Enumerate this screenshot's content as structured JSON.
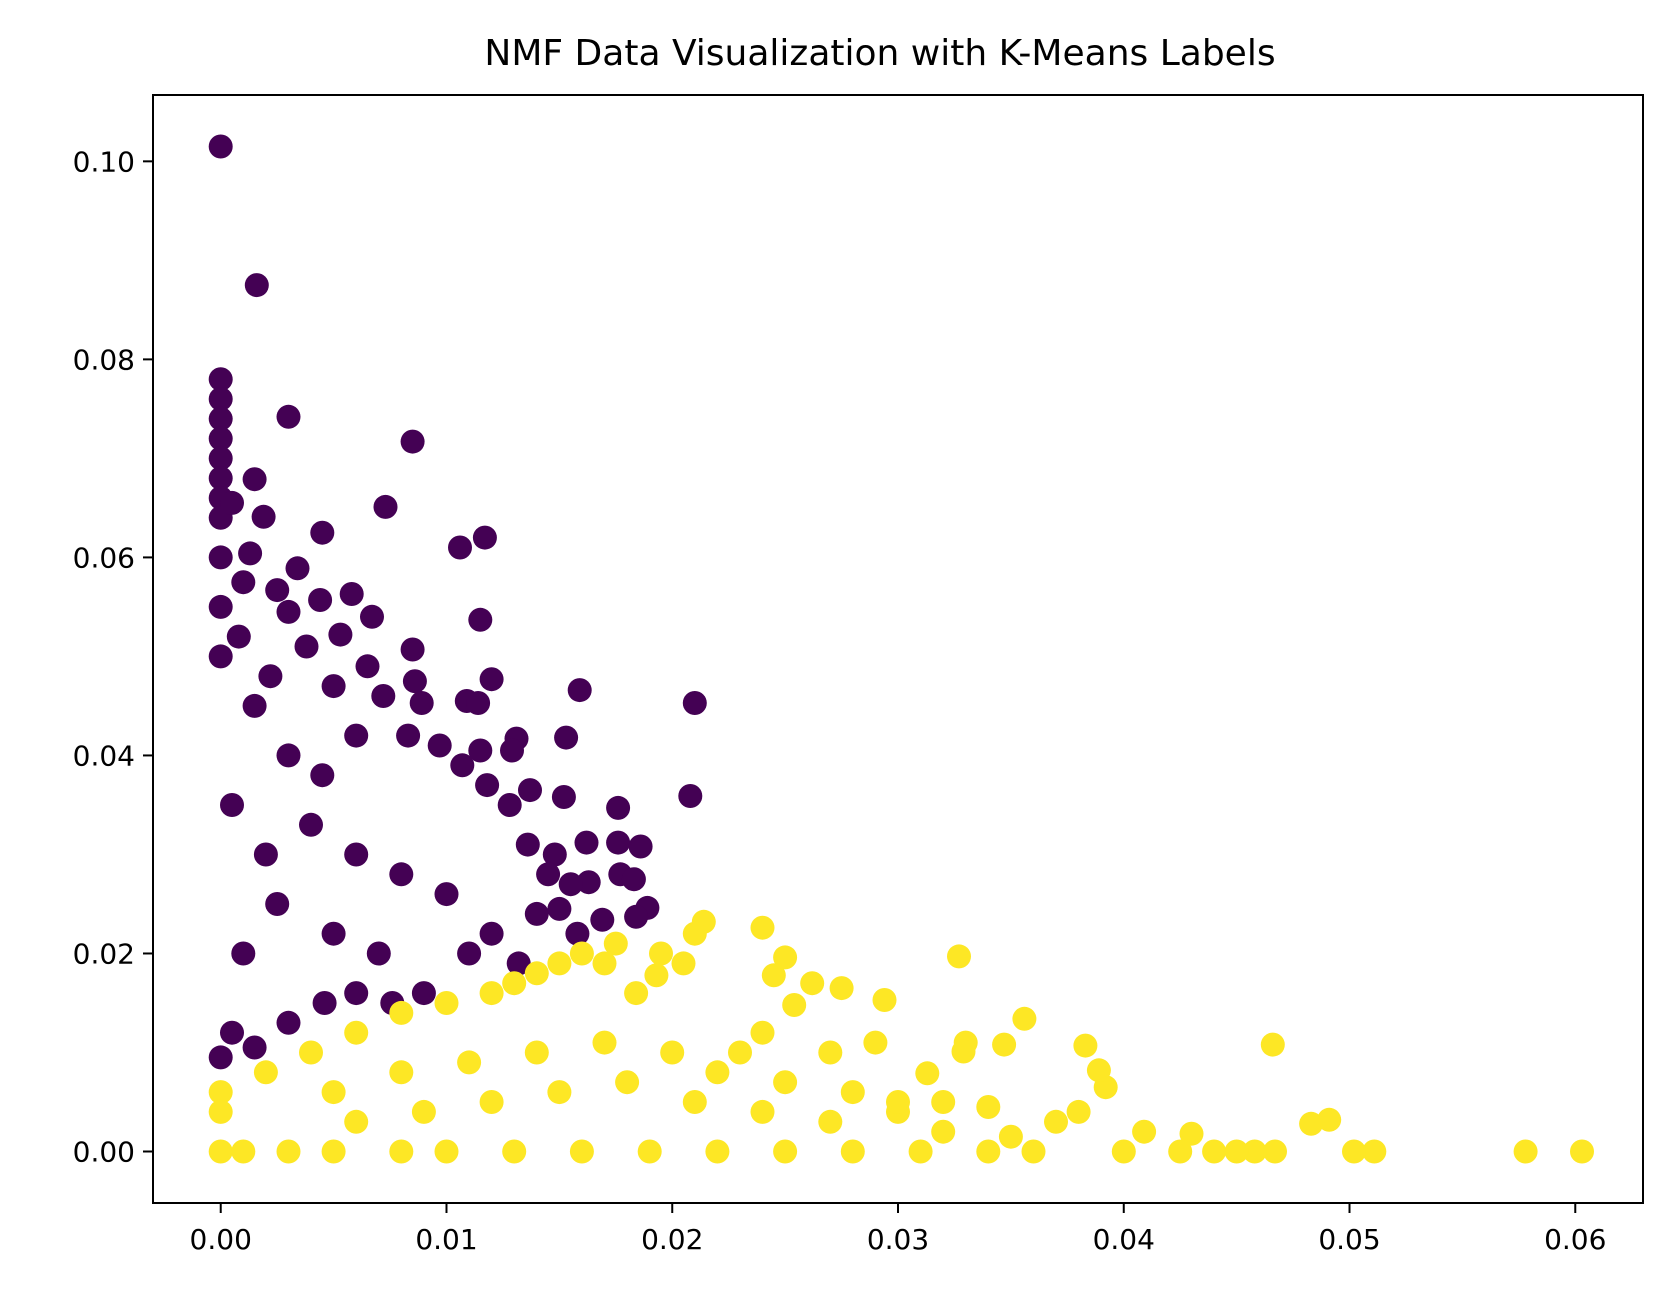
{
  "chart_data": {
    "type": "scatter",
    "title": "NMF Data Visualization with K-Means Labels",
    "xlabel": "",
    "ylabel": "",
    "xlim": [
      -0.003,
      0.063
    ],
    "ylim": [
      -0.0052,
      0.1067
    ],
    "xticks": [
      0.0,
      0.01,
      0.02,
      0.03,
      0.04,
      0.05,
      0.06
    ],
    "xtick_labels": [
      "0.00",
      "0.01",
      "0.02",
      "0.03",
      "0.04",
      "0.05",
      "0.06"
    ],
    "yticks": [
      0.0,
      0.02,
      0.04,
      0.06,
      0.08,
      0.1
    ],
    "ytick_labels": [
      "0.00",
      "0.02",
      "0.04",
      "0.06",
      "0.08",
      "0.10"
    ],
    "grid": false,
    "legend": "none",
    "colors": {
      "cluster_0": "#440154",
      "cluster_1": "#fde725"
    },
    "series": [
      {
        "cluster": 0,
        "color": "#440154",
        "points": [
          [
            0.0,
            0.1015
          ],
          [
            0.0016,
            0.0875
          ],
          [
            0.0,
            0.078
          ],
          [
            0.0,
            0.076
          ],
          [
            0.0,
            0.074
          ],
          [
            0.0,
            0.072
          ],
          [
            0.0,
            0.07
          ],
          [
            0.0,
            0.068
          ],
          [
            0.0,
            0.066
          ],
          [
            0.0,
            0.064
          ],
          [
            0.003,
            0.0742
          ],
          [
            0.0085,
            0.0717
          ],
          [
            0.0015,
            0.0679
          ],
          [
            0.0073,
            0.0651
          ],
          [
            0.0005,
            0.0655
          ],
          [
            0.0019,
            0.0641
          ],
          [
            0.0045,
            0.0625
          ],
          [
            0.0106,
            0.061
          ],
          [
            0.0117,
            0.062
          ],
          [
            0.0013,
            0.0604
          ],
          [
            0.0034,
            0.0589
          ],
          [
            0.0058,
            0.0563
          ],
          [
            0.0044,
            0.0557
          ],
          [
            0.0025,
            0.0567
          ],
          [
            0.001,
            0.0575
          ],
          [
            0.0115,
            0.0537
          ],
          [
            0.0067,
            0.054
          ],
          [
            0.0053,
            0.0522
          ],
          [
            0.003,
            0.0545
          ],
          [
            0.0085,
            0.0507
          ],
          [
            0.0038,
            0.051
          ],
          [
            0.0065,
            0.049
          ],
          [
            0.012,
            0.0477
          ],
          [
            0.0086,
            0.0475
          ],
          [
            0.005,
            0.047
          ],
          [
            0.0159,
            0.0466
          ],
          [
            0.021,
            0.0453
          ],
          [
            0.0109,
            0.0455
          ],
          [
            0.0114,
            0.0453
          ],
          [
            0.0089,
            0.0453
          ],
          [
            0.0072,
            0.046
          ],
          [
            0.0153,
            0.0418
          ],
          [
            0.0131,
            0.0417
          ],
          [
            0.0097,
            0.041
          ],
          [
            0.0115,
            0.0405
          ],
          [
            0.0129,
            0.0405
          ],
          [
            0.0107,
            0.039
          ],
          [
            0.0083,
            0.042
          ],
          [
            0.006,
            0.042
          ],
          [
            0.0208,
            0.0359
          ],
          [
            0.0176,
            0.0347
          ],
          [
            0.0152,
            0.0358
          ],
          [
            0.0137,
            0.0365
          ],
          [
            0.0128,
            0.035
          ],
          [
            0.0118,
            0.037
          ],
          [
            0.0176,
            0.0312
          ],
          [
            0.0186,
            0.0308
          ],
          [
            0.0162,
            0.0312
          ],
          [
            0.0148,
            0.03
          ],
          [
            0.0136,
            0.031
          ],
          [
            0.0177,
            0.028
          ],
          [
            0.0183,
            0.0275
          ],
          [
            0.0163,
            0.0272
          ],
          [
            0.0155,
            0.027
          ],
          [
            0.0145,
            0.028
          ],
          [
            0.0189,
            0.0246
          ],
          [
            0.0184,
            0.0237
          ],
          [
            0.0169,
            0.0234
          ],
          [
            0.015,
            0.0245
          ],
          [
            0.014,
            0.024
          ],
          [
            0.0158,
            0.022
          ],
          [
            0.0132,
            0.019
          ],
          [
            0.012,
            0.022
          ],
          [
            0.011,
            0.02
          ],
          [
            0.009,
            0.016
          ],
          [
            0.0076,
            0.015
          ],
          [
            0.006,
            0.016
          ],
          [
            0.0046,
            0.015
          ],
          [
            0.003,
            0.013
          ],
          [
            0.0015,
            0.0105
          ],
          [
            0.0,
            0.0095
          ],
          [
            0.0005,
            0.012
          ],
          [
            0.001,
            0.02
          ],
          [
            0.002,
            0.03
          ],
          [
            0.0005,
            0.035
          ],
          [
            0.003,
            0.04
          ],
          [
            0.0015,
            0.045
          ],
          [
            0.004,
            0.033
          ],
          [
            0.006,
            0.03
          ],
          [
            0.008,
            0.028
          ],
          [
            0.01,
            0.026
          ],
          [
            0.005,
            0.022
          ],
          [
            0.007,
            0.02
          ],
          [
            0.0025,
            0.025
          ],
          [
            0.0,
            0.05
          ],
          [
            0.0,
            0.055
          ],
          [
            0.0,
            0.06
          ],
          [
            0.0008,
            0.052
          ],
          [
            0.0022,
            0.048
          ],
          [
            0.0045,
            0.038
          ]
        ]
      },
      {
        "cluster": 1,
        "color": "#fde725",
        "points": [
          [
            0.0603,
            0.0
          ],
          [
            0.0578,
            0.0
          ],
          [
            0.0511,
            0.0
          ],
          [
            0.0502,
            0.0
          ],
          [
            0.0491,
            0.0032
          ],
          [
            0.0483,
            0.0028
          ],
          [
            0.0466,
            0.0108
          ],
          [
            0.0467,
            0.0
          ],
          [
            0.0458,
            0.0
          ],
          [
            0.045,
            0.0
          ],
          [
            0.044,
            0.0
          ],
          [
            0.043,
            0.0018
          ],
          [
            0.0425,
            0.0
          ],
          [
            0.0409,
            0.002
          ],
          [
            0.04,
            0.0
          ],
          [
            0.0392,
            0.0065
          ],
          [
            0.0389,
            0.0082
          ],
          [
            0.0383,
            0.0107
          ],
          [
            0.038,
            0.004
          ],
          [
            0.037,
            0.003
          ],
          [
            0.0356,
            0.0134
          ],
          [
            0.0347,
            0.0108
          ],
          [
            0.034,
            0.0045
          ],
          [
            0.033,
            0.011
          ],
          [
            0.0329,
            0.0101
          ],
          [
            0.0327,
            0.0197
          ],
          [
            0.032,
            0.005
          ],
          [
            0.0313,
            0.0079
          ],
          [
            0.03,
            0.004
          ],
          [
            0.0294,
            0.0153
          ],
          [
            0.029,
            0.011
          ],
          [
            0.0275,
            0.0165
          ],
          [
            0.027,
            0.01
          ],
          [
            0.0262,
            0.017
          ],
          [
            0.025,
            0.0196
          ],
          [
            0.0254,
            0.0148
          ],
          [
            0.0245,
            0.0178
          ],
          [
            0.024,
            0.0226
          ],
          [
            0.024,
            0.012
          ],
          [
            0.023,
            0.01
          ],
          [
            0.0214,
            0.0232
          ],
          [
            0.021,
            0.022
          ],
          [
            0.0205,
            0.019
          ],
          [
            0.0195,
            0.02
          ],
          [
            0.0193,
            0.0178
          ],
          [
            0.0184,
            0.016
          ],
          [
            0.0175,
            0.021
          ],
          [
            0.017,
            0.019
          ],
          [
            0.016,
            0.02
          ],
          [
            0.015,
            0.019
          ],
          [
            0.014,
            0.018
          ],
          [
            0.013,
            0.017
          ],
          [
            0.012,
            0.016
          ],
          [
            0.01,
            0.015
          ],
          [
            0.008,
            0.014
          ],
          [
            0.006,
            0.012
          ],
          [
            0.004,
            0.01
          ],
          [
            0.002,
            0.008
          ],
          [
            0.0,
            0.006
          ],
          [
            0.0,
            0.004
          ],
          [
            0.0,
            0.0
          ],
          [
            0.001,
            0.0
          ],
          [
            0.003,
            0.0
          ],
          [
            0.005,
            0.0
          ],
          [
            0.008,
            0.0
          ],
          [
            0.01,
            0.0
          ],
          [
            0.013,
            0.0
          ],
          [
            0.016,
            0.0
          ],
          [
            0.019,
            0.0
          ],
          [
            0.022,
            0.0
          ],
          [
            0.025,
            0.0
          ],
          [
            0.028,
            0.0
          ],
          [
            0.031,
            0.0
          ],
          [
            0.034,
            0.0
          ],
          [
            0.036,
            0.0
          ],
          [
            0.005,
            0.006
          ],
          [
            0.008,
            0.008
          ],
          [
            0.011,
            0.009
          ],
          [
            0.014,
            0.01
          ],
          [
            0.017,
            0.011
          ],
          [
            0.02,
            0.01
          ],
          [
            0.022,
            0.008
          ],
          [
            0.025,
            0.007
          ],
          [
            0.028,
            0.006
          ],
          [
            0.03,
            0.005
          ],
          [
            0.006,
            0.003
          ],
          [
            0.009,
            0.004
          ],
          [
            0.012,
            0.005
          ],
          [
            0.015,
            0.006
          ],
          [
            0.018,
            0.007
          ],
          [
            0.021,
            0.005
          ],
          [
            0.024,
            0.004
          ],
          [
            0.027,
            0.003
          ],
          [
            0.032,
            0.002
          ],
          [
            0.035,
            0.0015
          ]
        ]
      }
    ]
  }
}
